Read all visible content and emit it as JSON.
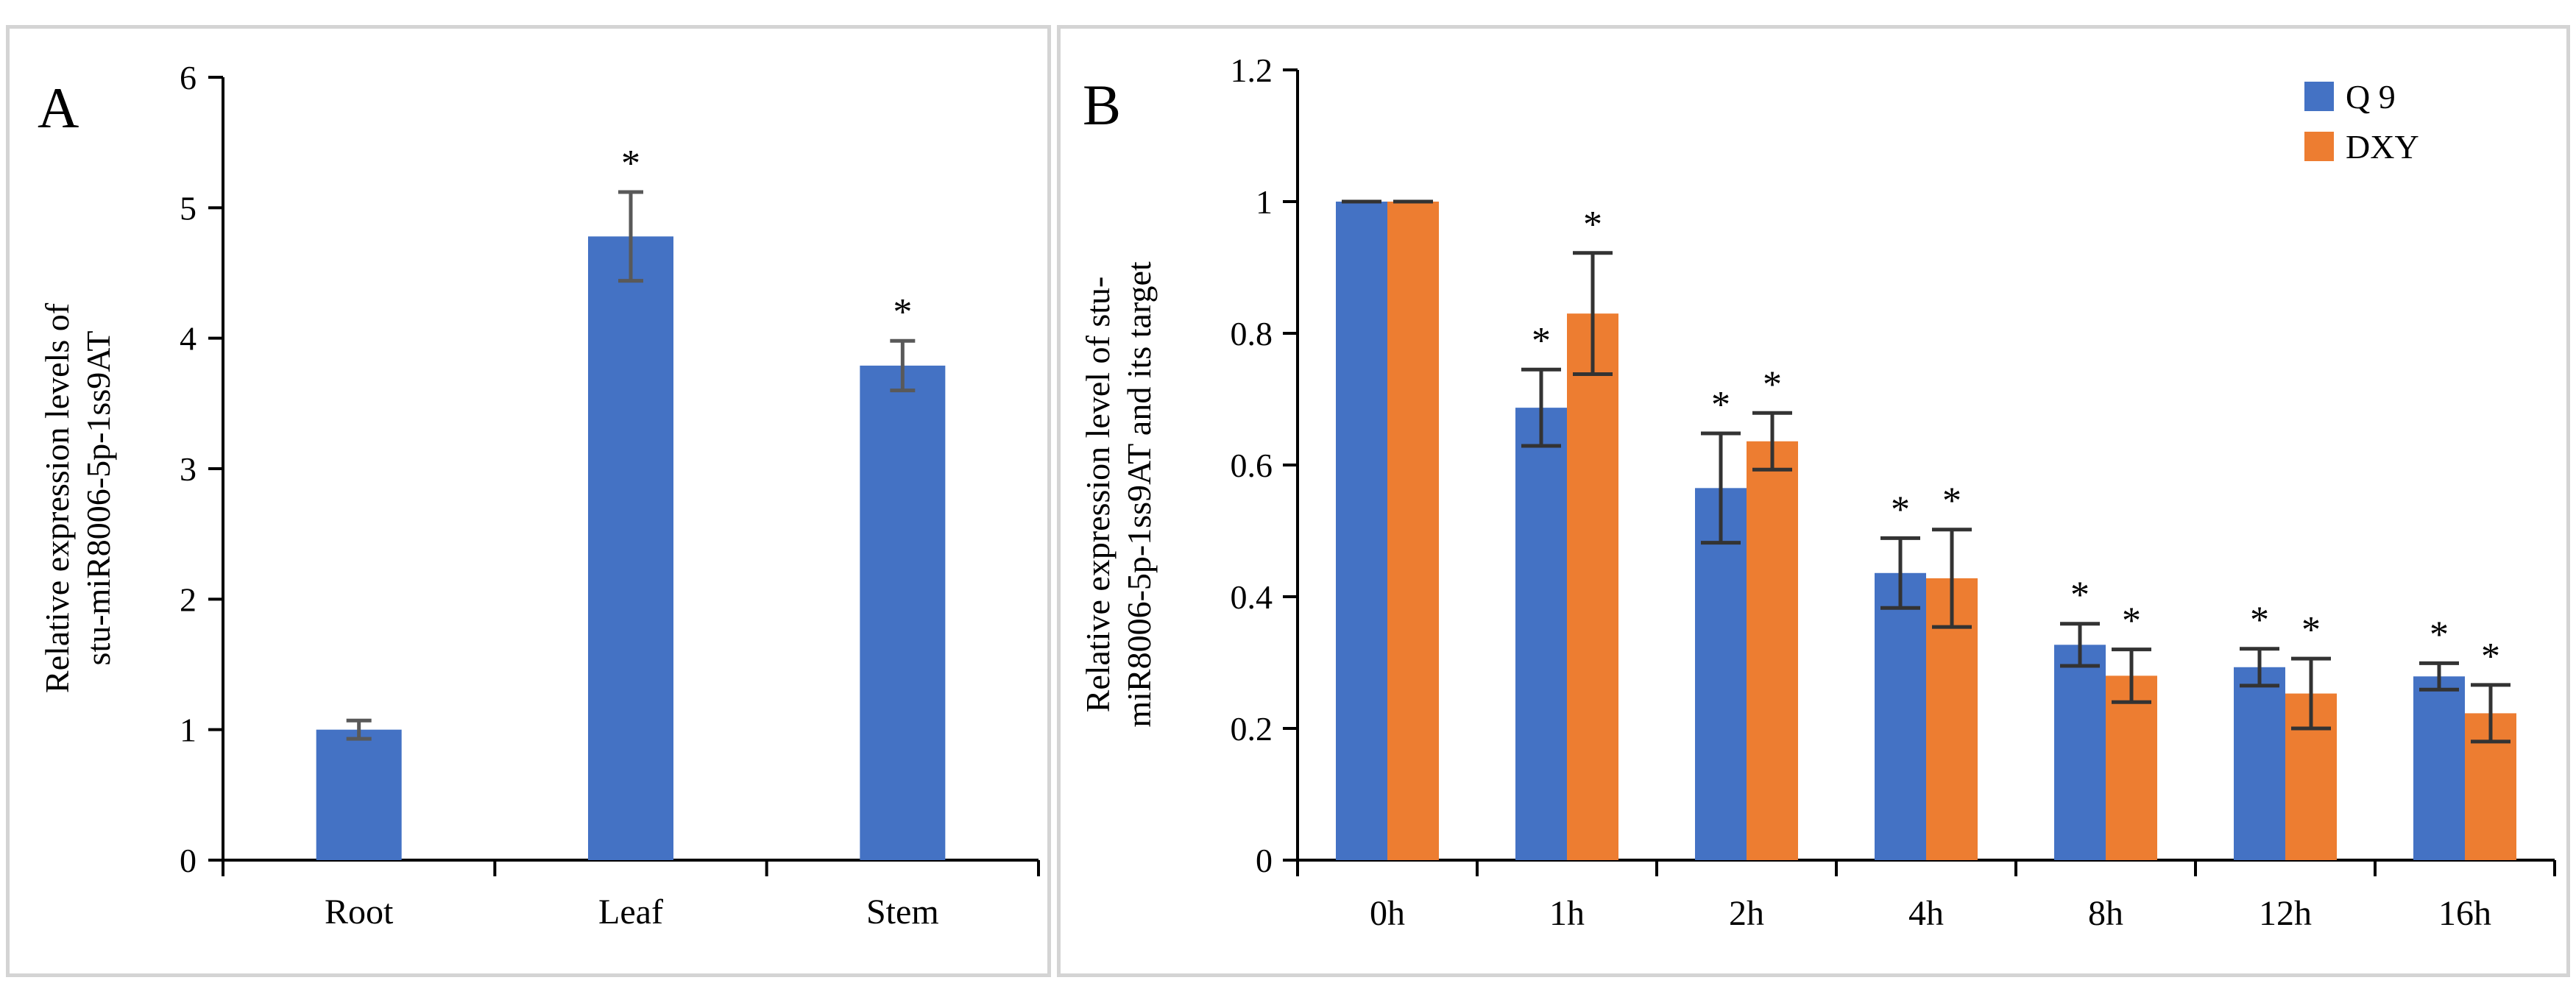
{
  "chart_data": [
    {
      "panel": "A",
      "type": "bar",
      "panel_label": "A",
      "ylabel_lines": [
        "Relative expression levels of",
        "stu-miR8006-5p-1ss9AT"
      ],
      "ylim": [
        0,
        6
      ],
      "yticks": [
        0,
        1,
        2,
        3,
        4,
        5,
        6
      ],
      "ytick_labels": [
        "0",
        "1",
        "2",
        "3",
        "4",
        "5",
        "6"
      ],
      "categories": [
        "Root",
        "Leaf",
        "Stem"
      ],
      "values": [
        1.0,
        4.78,
        3.79
      ],
      "errors": [
        0.07,
        0.34,
        0.19
      ],
      "significance": [
        "",
        "*",
        "*"
      ],
      "bar_color": "#4472C4",
      "error_color": "#595959"
    },
    {
      "panel": "B",
      "type": "bar",
      "panel_label": "B",
      "ylabel_lines": [
        "Relative expression level of stu-",
        "miR8006-5p-1ss9AT and its target"
      ],
      "ylim": [
        0,
        1.2
      ],
      "yticks": [
        0,
        0.2,
        0.4,
        0.6,
        0.8,
        1.0,
        1.2
      ],
      "ytick_labels": [
        "0",
        "0.2",
        "0.4",
        "0.6",
        "0.8",
        "1",
        "1.2"
      ],
      "categories": [
        "0h",
        "1h",
        "2h",
        "4h",
        "8h",
        "12h",
        "16h"
      ],
      "legend_position": "top-right",
      "series": [
        {
          "name": "Q 9",
          "color": "#4472C4",
          "values": [
            1.0,
            0.687,
            0.565,
            0.436,
            0.327,
            0.293,
            0.279
          ],
          "errors": [
            0.0,
            0.058,
            0.083,
            0.053,
            0.032,
            0.028,
            0.02
          ],
          "significance": [
            "",
            "*",
            "*",
            "*",
            "*",
            "*",
            "*"
          ]
        },
        {
          "name": "DXY",
          "color": "#ED7D31",
          "values": [
            1.0,
            0.83,
            0.636,
            0.428,
            0.28,
            0.253,
            0.223
          ],
          "errors": [
            0.0,
            0.092,
            0.043,
            0.074,
            0.04,
            0.053,
            0.043
          ],
          "significance": [
            "",
            "*",
            "*",
            "*",
            "*",
            "*",
            "*"
          ]
        }
      ],
      "error_color": "#333333"
    }
  ]
}
